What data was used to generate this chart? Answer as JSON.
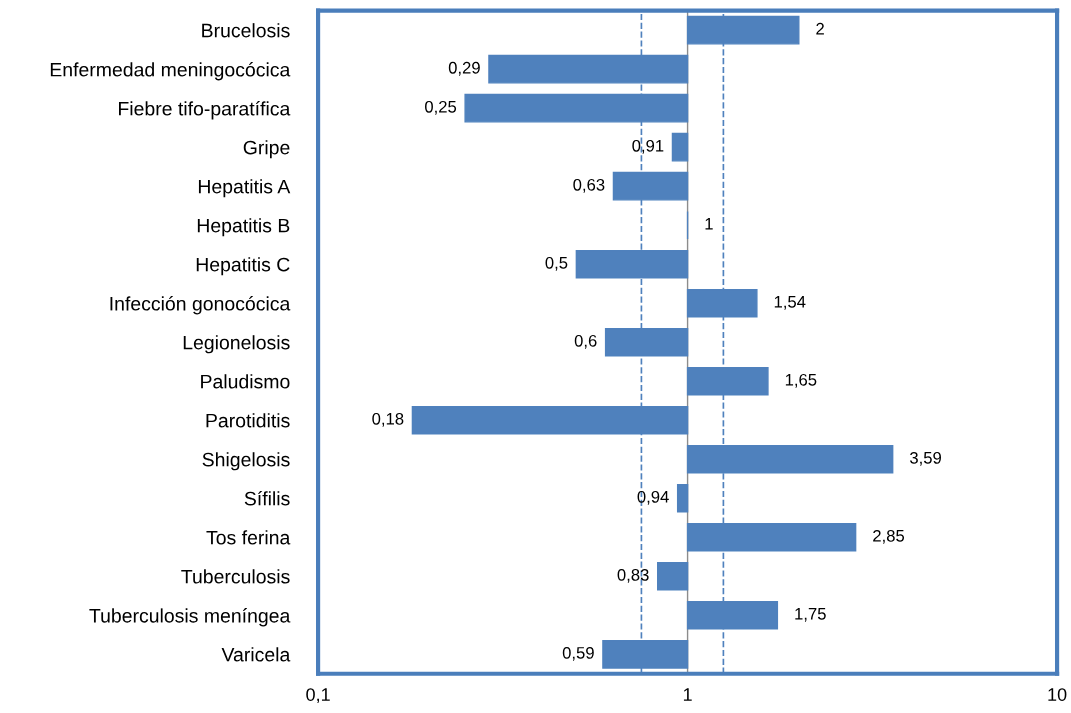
{
  "chart_data": {
    "type": "bar",
    "orientation": "horizontal",
    "log": "x",
    "categories": [
      "Brucelosis",
      "Enfermedad meningocócica",
      "Fiebre tifo-paratífica",
      "Gripe",
      "Hepatitis A",
      "Hepatitis B",
      "Hepatitis C",
      "Infección gonocócica",
      "Legionelosis",
      "Paludismo",
      "Parotiditis",
      "Shigelosis",
      "Sífilis",
      "Tos ferina",
      "Tuberculosis",
      "Tuberculosis meníngea",
      "Varicela"
    ],
    "base": [
      1,
      1,
      1,
      1,
      1,
      1,
      1,
      1,
      1,
      1,
      1,
      1,
      1,
      1,
      1,
      1,
      1
    ],
    "values": [
      1,
      -0.71,
      -0.75,
      -0.09,
      -0.37,
      0,
      -0.5,
      0.54,
      -0.4,
      0.65,
      -0.82,
      2.59,
      -0.06,
      1.85,
      -0.17,
      0.75,
      -0.41
    ],
    "value_labels": [
      "2",
      "0,29",
      "0,25",
      "0,91",
      "0,63",
      "1",
      "0,5",
      "1,54",
      "0,6",
      "1,65",
      "0,18",
      "3,59",
      "0,94",
      "2,85",
      "0,83",
      "1,75",
      "0,59"
    ],
    "color": "#4f81bd",
    "xlim": [
      0.1,
      10
    ],
    "xticks": [
      {
        "value": 0.1,
        "label": "0,1"
      },
      1,
      10
    ],
    "grid": "x",
    "ref_lines": [
      {
        "axis": "x",
        "value": 0.75,
        "color": "#4f81bd",
        "line_style": "dashed"
      },
      {
        "axis": "x",
        "value": 1.25,
        "color": "#4f81bd",
        "line_style": "dashed"
      }
    ]
  }
}
